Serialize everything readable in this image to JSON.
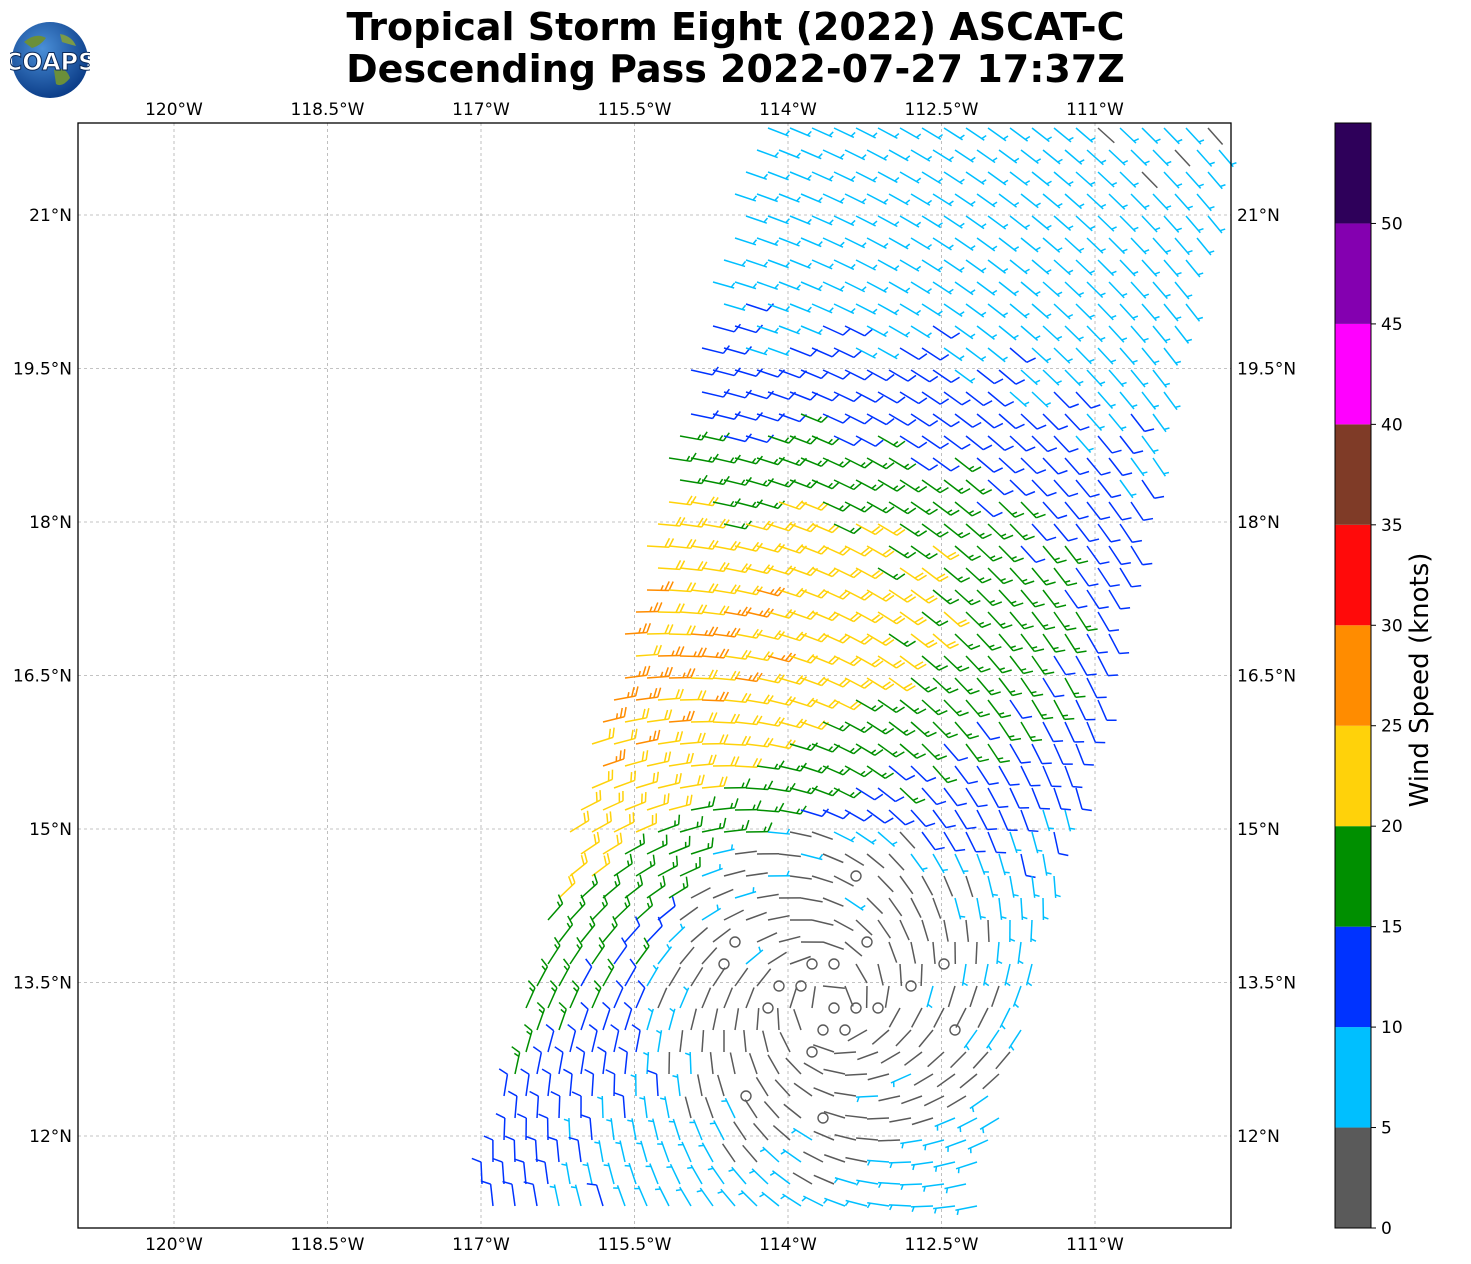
{
  "title_line1": "Tropical Storm Eight (2022) ASCAT-C",
  "title_line2": "Descending Pass 2022-07-27 17:37Z",
  "logo_text": "COAPS",
  "lon_labels": [
    "120°W",
    "118.5°W",
    "117°W",
    "115.5°W",
    "114°W",
    "112.5°W",
    "111°W"
  ],
  "lat_labels": [
    "21°N",
    "19.5°N",
    "18°N",
    "16.5°N",
    "15°N",
    "13.5°N",
    "12°N"
  ],
  "colorbar": {
    "label": "Wind Speed (knots)",
    "tick_labels": [
      "0",
      "5",
      "10",
      "15",
      "20",
      "25",
      "30",
      "35",
      "40",
      "45",
      "50"
    ],
    "colors": [
      "#5a5a5a",
      "#00bfff",
      "#0033ff",
      "#008f00",
      "#ffd20a",
      "#ff8c00",
      "#ff0a0a",
      "#7f3b27",
      "#ff00ff",
      "#8400b0",
      "#2e005a"
    ]
  },
  "chart_data": {
    "type": "wind_barbs",
    "lon_range": [
      -121.0,
      -109.7
    ],
    "lat_range": [
      11.1,
      21.9
    ],
    "center_lon": -113.6,
    "center_lat": 13.3,
    "speed_units": "knots"
  }
}
